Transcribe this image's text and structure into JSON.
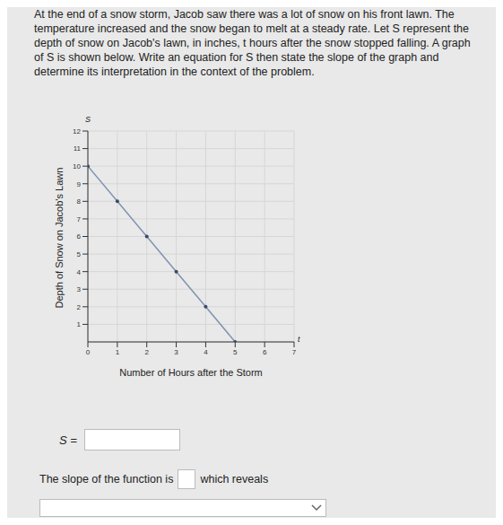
{
  "problem": "At the end of a snow storm, Jacob saw there was a lot of snow on his front lawn. The temperature increased and the snow began to melt at a steady rate. Let S represent the depth of snow on Jacob's lawn, in inches, t hours after the snow stopped falling. A graph of S is shown below. Write an equation for S then state the slope of the graph and determine its interpretation in the context of the problem.",
  "chart_data": {
    "type": "line",
    "x_label": "Number of Hours after the Storm",
    "y_label": "Depth of Snow on Jacob's Lawn",
    "annotations": [
      "S",
      "t"
    ],
    "x": [
      0,
      1,
      2,
      3,
      4,
      5
    ],
    "values": [
      10,
      8,
      6,
      4,
      2,
      0
    ],
    "color": "#7f93b0",
    "marker": "circle",
    "xlim": [
      0,
      7
    ],
    "xticks": [
      0,
      1,
      2,
      3,
      4,
      5,
      6,
      7
    ],
    "ylim": [
      0,
      12
    ],
    "yticks": [
      1,
      2,
      3,
      4,
      5,
      6,
      7,
      8,
      9,
      10,
      11,
      12
    ],
    "grid": true
  },
  "equation_label": "S =",
  "slope_sentence": [
    "The slope of the function is",
    "which reveals"
  ]
}
